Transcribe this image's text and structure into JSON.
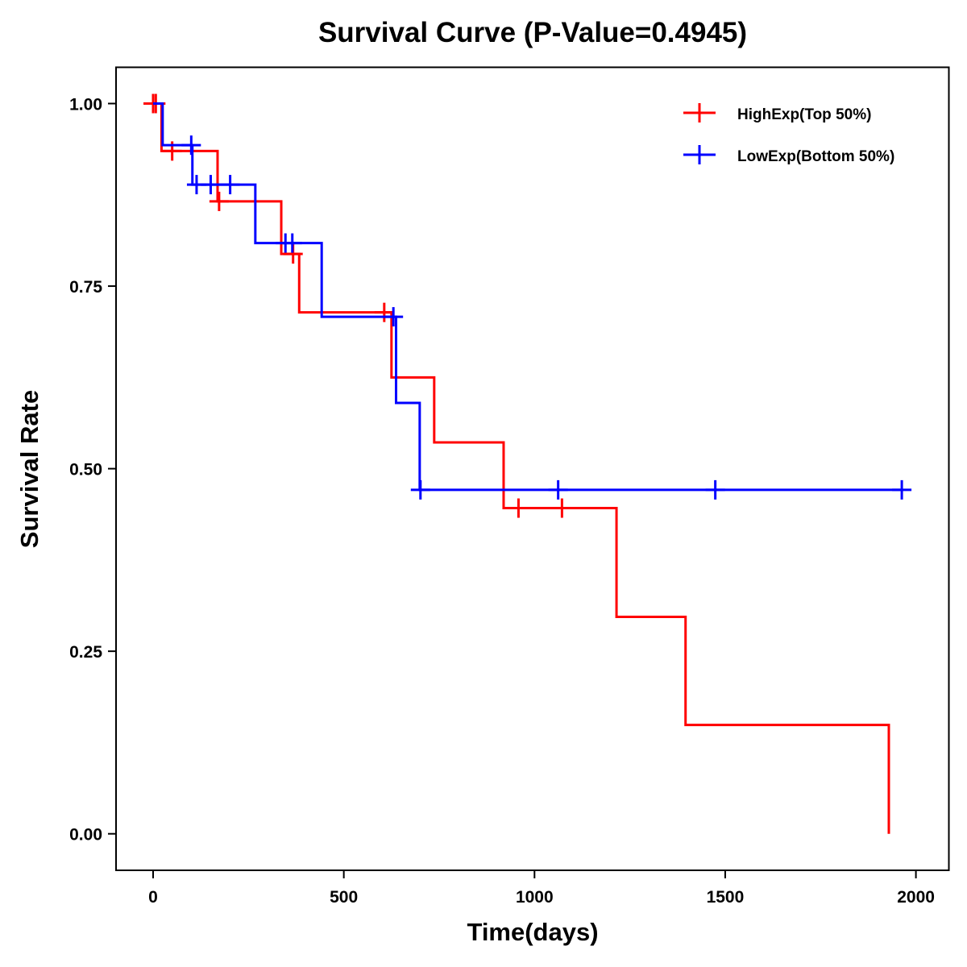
{
  "chart_data": {
    "type": "line",
    "subtype": "kaplan-meier-step",
    "title": "Survival Curve (P-Value=0.4945)",
    "xlabel": "Time(days)",
    "ylabel": "Survival Rate",
    "xlim": [
      -100,
      2100
    ],
    "ylim": [
      -0.05,
      1.05
    ],
    "xticks": [
      0,
      500,
      1000,
      1500,
      2000
    ],
    "xtick_labels": [
      "0",
      "500",
      "1000",
      "1500",
      "2000"
    ],
    "yticks": [
      0,
      0.25,
      0.5,
      0.75,
      1.0
    ],
    "ytick_labels": [
      "0.00",
      "0.25",
      "0.50",
      "0.75",
      "1.00"
    ],
    "grid": false,
    "legend_position": "top-right",
    "series": [
      {
        "name": "HighExp(Top 50%)",
        "color": "#ff0000",
        "steps": [
          {
            "t": 0,
            "s": 1.0
          },
          {
            "t": 22,
            "s": 0.935
          },
          {
            "t": 169,
            "s": 0.866
          },
          {
            "t": 336,
            "s": 0.794
          },
          {
            "t": 383,
            "s": 0.714
          },
          {
            "t": 625,
            "s": 0.625
          },
          {
            "t": 737,
            "s": 0.536
          },
          {
            "t": 919,
            "s": 0.446
          },
          {
            "t": 1215,
            "s": 0.297
          },
          {
            "t": 1396,
            "s": 0.149
          },
          {
            "t": 1929,
            "s": 0.0
          }
        ],
        "end_time": 1929,
        "censored": [
          0,
          7,
          50,
          173,
          367,
          606,
          958,
          1072
        ]
      },
      {
        "name": "LowExp(Bottom 50%)",
        "color": "#0000ff",
        "steps": [
          {
            "t": 0,
            "s": 1.0
          },
          {
            "t": 25,
            "s": 0.943
          },
          {
            "t": 103,
            "s": 0.889
          },
          {
            "t": 268,
            "s": 0.809
          },
          {
            "t": 442,
            "s": 0.708
          },
          {
            "t": 637,
            "s": 0.59
          },
          {
            "t": 699,
            "s": 0.471
          }
        ],
        "end_time": 1963,
        "censored": [
          100,
          114,
          151,
          202,
          347,
          365,
          630,
          701,
          1062,
          1474,
          1963
        ]
      }
    ]
  }
}
